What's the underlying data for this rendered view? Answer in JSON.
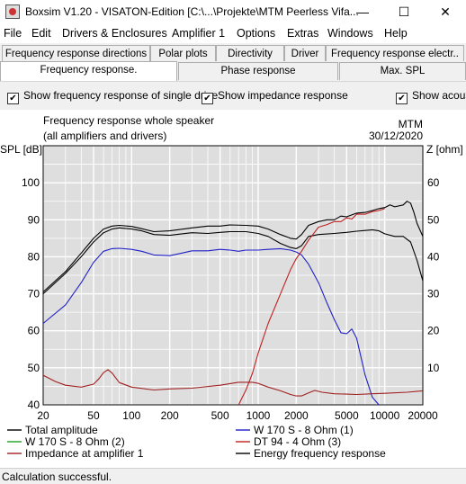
{
  "window": {
    "title": "Boxsim V1.20 - VISATON-Edition [C:\\...\\Projekte\\MTM Peerless Vifa...",
    "controls": [
      "—",
      "☐",
      "✕"
    ]
  },
  "menu": [
    "File",
    "Edit",
    "Drivers & Enclosures",
    "Amplifier 1",
    "Options",
    "Extras",
    "Windows",
    "Help"
  ],
  "tabs": {
    "row1": [
      "Frequency response directions",
      "Polar plots",
      "Directivity",
      "Driver",
      "Frequency response electr.."
    ],
    "row2": [
      "Frequency response.",
      "Phase response",
      "Max. SPL"
    ]
  },
  "options": {
    "single_drive": "Show frequency response of single drive",
    "impedance": "Show impedance response",
    "acoustic": "Show acous"
  },
  "status": "Calculation successful.",
  "chart_data": {
    "type": "line",
    "title": "Frequency response whole speaker",
    "subtitle": "(all amplifiers and drivers)",
    "author": "MTM",
    "date": "30/12/2020",
    "ylabel": "SPL [dB]",
    "y2label": "Z [ohm]",
    "xscale": "log",
    "xlim": [
      20,
      20000
    ],
    "ylim": [
      40,
      110
    ],
    "y2lim": [
      0,
      70
    ],
    "xticks": [
      "20",
      "50",
      "100",
      "200",
      "500",
      "1000",
      "2000",
      "5000",
      "10000",
      "20000"
    ],
    "yticks": [
      "40",
      "50",
      "60",
      "70",
      "80",
      "90",
      "100"
    ],
    "y2ticks": [
      "10",
      "20",
      "30",
      "40",
      "50",
      "60"
    ],
    "grid": true,
    "legend_position": "bottom",
    "colors": {
      "plot_bg": "#dedede",
      "grid": "#ffffff"
    },
    "series": [
      {
        "name": "Total amplitude",
        "color": "#000000",
        "axis": "left",
        "points": [
          [
            20,
            70
          ],
          [
            30,
            75.5
          ],
          [
            40,
            80
          ],
          [
            50,
            84
          ],
          [
            60,
            86.5
          ],
          [
            70,
            87.5
          ],
          [
            80,
            87.8
          ],
          [
            100,
            87.5
          ],
          [
            120,
            87
          ],
          [
            150,
            86
          ],
          [
            200,
            85.8
          ],
          [
            250,
            86.2
          ],
          [
            300,
            86.5
          ],
          [
            400,
            86.3
          ],
          [
            500,
            86.6
          ],
          [
            600,
            86.8
          ],
          [
            800,
            86.8
          ],
          [
            1000,
            86.3
          ],
          [
            1200,
            85.5
          ],
          [
            1500,
            83.6
          ],
          [
            1800,
            82.5
          ],
          [
            2000,
            82.2
          ],
          [
            2200,
            83
          ],
          [
            2500,
            85.5
          ],
          [
            3000,
            86
          ],
          [
            4000,
            86.3
          ],
          [
            5000,
            86.6
          ],
          [
            6000,
            86.9
          ],
          [
            7000,
            87.1
          ],
          [
            8000,
            87.3
          ],
          [
            9000,
            87
          ],
          [
            10000,
            86.2
          ],
          [
            12000,
            85.5
          ],
          [
            14000,
            85.5
          ],
          [
            16000,
            84
          ],
          [
            18000,
            79
          ],
          [
            20000,
            73.5
          ]
        ]
      },
      {
        "name": "W 170 S - 8 Ohm (1)",
        "color": "#2020c8",
        "axis": "left",
        "points": [
          [
            20,
            62
          ],
          [
            30,
            67
          ],
          [
            40,
            73
          ],
          [
            50,
            78.5
          ],
          [
            60,
            81.5
          ],
          [
            70,
            82.2
          ],
          [
            80,
            82.3
          ],
          [
            100,
            82
          ],
          [
            120,
            81.5
          ],
          [
            150,
            80.5
          ],
          [
            200,
            80.3
          ],
          [
            250,
            81
          ],
          [
            300,
            81.6
          ],
          [
            400,
            81.6
          ],
          [
            500,
            82
          ],
          [
            600,
            81.8
          ],
          [
            700,
            81.5
          ],
          [
            800,
            81.8
          ],
          [
            1000,
            81.8
          ],
          [
            1200,
            82
          ],
          [
            1500,
            82.2
          ],
          [
            1800,
            81.8
          ],
          [
            2000,
            81.3
          ],
          [
            2200,
            80.5
          ],
          [
            2500,
            78
          ],
          [
            3000,
            73
          ],
          [
            3500,
            67.5
          ],
          [
            4000,
            63
          ],
          [
            4500,
            59.5
          ],
          [
            5000,
            59.2
          ],
          [
            5500,
            60.5
          ],
          [
            6000,
            58
          ],
          [
            7000,
            48
          ],
          [
            8000,
            42
          ],
          [
            9000,
            40
          ]
        ]
      },
      {
        "name": "W 170 S - 8 Ohm (2)",
        "color": "#20a020",
        "axis": "left",
        "points": []
      },
      {
        "name": "DT 94 - 4 Ohm (3)",
        "color": "#c02020",
        "axis": "left",
        "points": [
          [
            700,
            40
          ],
          [
            800,
            44
          ],
          [
            900,
            48.5
          ],
          [
            1000,
            54
          ],
          [
            1200,
            62
          ],
          [
            1500,
            70
          ],
          [
            1800,
            76.5
          ],
          [
            2000,
            79.5
          ],
          [
            2200,
            81.5
          ],
          [
            2500,
            84.5
          ],
          [
            3000,
            88
          ],
          [
            3500,
            88.7
          ],
          [
            4000,
            89.5
          ],
          [
            4500,
            89.5
          ],
          [
            5000,
            90.5
          ],
          [
            5500,
            90.2
          ],
          [
            6000,
            91.5
          ],
          [
            7000,
            91.5
          ],
          [
            8000,
            92.2
          ],
          [
            9000,
            92.5
          ],
          [
            10000,
            93
          ]
        ]
      },
      {
        "name": "Impedance at amplifier 1",
        "color": "#a02020",
        "axis": "right",
        "points": [
          [
            20,
            8
          ],
          [
            25,
            6.3
          ],
          [
            30,
            5.3
          ],
          [
            40,
            4.8
          ],
          [
            50,
            5.6
          ],
          [
            55,
            7
          ],
          [
            60,
            8.7
          ],
          [
            65,
            9.5
          ],
          [
            70,
            8.6
          ],
          [
            80,
            6
          ],
          [
            100,
            4.8
          ],
          [
            150,
            4
          ],
          [
            200,
            4.3
          ],
          [
            300,
            4.5
          ],
          [
            500,
            5.3
          ],
          [
            700,
            6.1
          ],
          [
            900,
            6.1
          ],
          [
            1000,
            5.8
          ],
          [
            1200,
            4.8
          ],
          [
            1500,
            3.8
          ],
          [
            1800,
            2.8
          ],
          [
            2000,
            2.4
          ],
          [
            2200,
            2.4
          ],
          [
            2500,
            3.2
          ],
          [
            2800,
            3.9
          ],
          [
            3200,
            3.4
          ],
          [
            4000,
            3.0
          ],
          [
            5000,
            2.9
          ],
          [
            6000,
            2.8
          ],
          [
            8000,
            3.0
          ],
          [
            10000,
            3.1
          ],
          [
            15000,
            3.4
          ],
          [
            20000,
            3.8
          ]
        ]
      },
      {
        "name": "Energy frequency response",
        "color": "#000000",
        "axis": "left",
        "points": [
          [
            20,
            70.5
          ],
          [
            30,
            76
          ],
          [
            40,
            81
          ],
          [
            50,
            85
          ],
          [
            60,
            87.5
          ],
          [
            70,
            88.3
          ],
          [
            80,
            88.5
          ],
          [
            100,
            88.2
          ],
          [
            120,
            87.6
          ],
          [
            150,
            86.8
          ],
          [
            200,
            87
          ],
          [
            300,
            87.8
          ],
          [
            400,
            88.3
          ],
          [
            500,
            88.3
          ],
          [
            600,
            88.6
          ],
          [
            800,
            88.5
          ],
          [
            1000,
            88.3
          ],
          [
            1200,
            87.5
          ],
          [
            1500,
            86
          ],
          [
            1800,
            85
          ],
          [
            2000,
            84.8
          ],
          [
            2200,
            86
          ],
          [
            2500,
            88.5
          ],
          [
            3000,
            89.5
          ],
          [
            3500,
            90
          ],
          [
            4000,
            90
          ],
          [
            4500,
            91
          ],
          [
            5000,
            90.8
          ],
          [
            6000,
            91.8
          ],
          [
            7000,
            92
          ],
          [
            8000,
            92.5
          ],
          [
            9000,
            93
          ],
          [
            10000,
            93.3
          ],
          [
            11000,
            94
          ],
          [
            12000,
            93.5
          ],
          [
            14000,
            94
          ],
          [
            15000,
            95
          ],
          [
            16000,
            94.5
          ],
          [
            17000,
            92
          ],
          [
            18000,
            89
          ],
          [
            20000,
            85.5
          ]
        ]
      }
    ]
  }
}
